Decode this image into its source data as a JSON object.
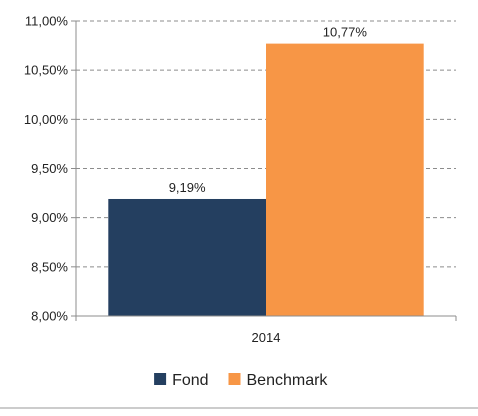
{
  "chart_data": {
    "type": "bar",
    "categories": [
      "2014"
    ],
    "series": [
      {
        "name": "Fond",
        "values": [
          9.19
        ],
        "label": "9,19%",
        "color": "#243F60"
      },
      {
        "name": "Benchmark",
        "values": [
          10.77
        ],
        "label": "10,77%",
        "color": "#F79646"
      }
    ],
    "ylim": [
      8.0,
      11.0
    ],
    "yticks": [
      {
        "value": 8.0,
        "label": "8,00%"
      },
      {
        "value": 8.5,
        "label": "8,50%"
      },
      {
        "value": 9.0,
        "label": "9,00%"
      },
      {
        "value": 9.5,
        "label": "9,50%"
      },
      {
        "value": 10.0,
        "label": "10,00%"
      },
      {
        "value": 10.5,
        "label": "10,50%"
      },
      {
        "value": 11.0,
        "label": "11,00%"
      }
    ],
    "title": "",
    "xlabel": "",
    "ylabel": "",
    "grid": true,
    "legend_position": "bottom"
  }
}
